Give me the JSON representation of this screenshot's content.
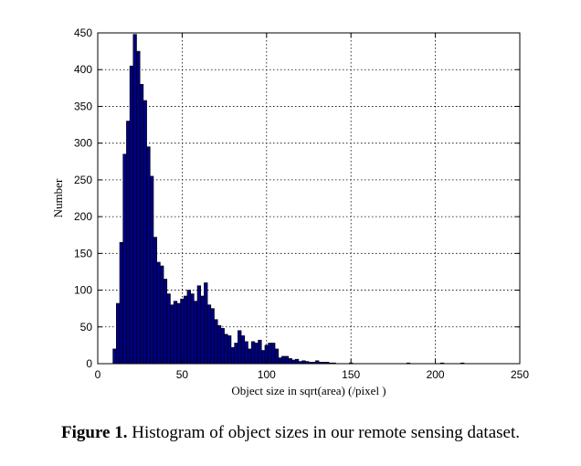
{
  "chart_data": {
    "type": "bar",
    "xlabel": "Object size in sqrt(area)   (/pixel )",
    "ylabel": "Number",
    "xlim": [
      0,
      250
    ],
    "ylim": [
      0,
      450
    ],
    "xticks": [
      0,
      50,
      100,
      150,
      200,
      250
    ],
    "yticks": [
      0,
      50,
      100,
      150,
      200,
      250,
      300,
      350,
      400,
      450
    ],
    "grid": true,
    "bar_color": "#000080",
    "bin_start": 9,
    "bin_width": 2,
    "values": [
      20,
      82,
      165,
      285,
      330,
      405,
      448,
      425,
      380,
      358,
      295,
      255,
      172,
      138,
      133,
      115,
      95,
      80,
      85,
      82,
      88,
      92,
      100,
      95,
      85,
      106,
      92,
      110,
      80,
      75,
      60,
      52,
      48,
      40,
      38,
      22,
      28,
      45,
      38,
      30,
      20,
      30,
      28,
      32,
      18,
      25,
      28,
      28,
      20,
      8,
      10,
      10,
      7,
      5,
      6,
      3,
      4,
      3,
      2,
      2,
      4,
      2,
      2,
      2,
      1,
      1,
      0,
      0,
      0,
      0,
      1,
      0,
      0,
      0,
      0,
      0,
      0,
      0,
      0,
      0,
      0,
      0,
      0,
      0,
      0,
      0,
      0,
      1,
      0,
      0,
      0,
      0,
      0,
      0,
      0,
      0,
      0,
      1,
      0,
      0,
      0,
      0,
      0,
      1,
      0,
      0,
      0
    ]
  },
  "caption": {
    "figure_number": "Figure 1.",
    "text": " Histogram of object sizes in our remote sensing dataset."
  }
}
